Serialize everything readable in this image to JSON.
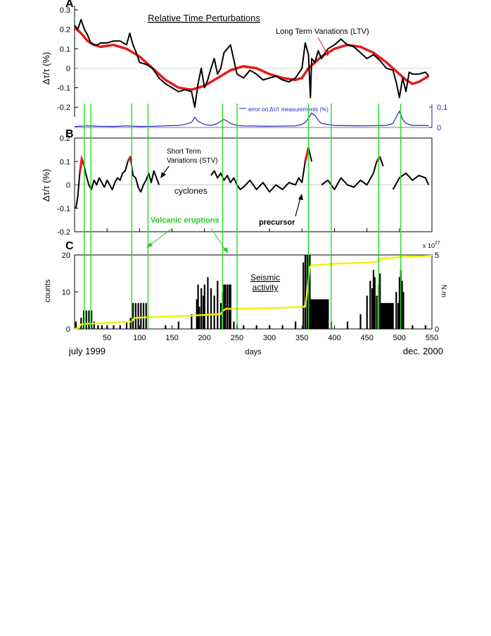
{
  "colors": {
    "data": "#000000",
    "ltv": "#e41a1c",
    "stv_highlight": "#e41a1c",
    "error": "#1f1fd0",
    "eruption": "#22dd22",
    "eruption_text": "#22cc22",
    "cumulative": "#f5f000",
    "axis": "#000000"
  },
  "chart_data": [
    {
      "panel": "A",
      "type": "line",
      "title": "Relative Time Perturbations",
      "ylabel": "Δτ/τ  (%)",
      "xlim": [
        0,
        550
      ],
      "ylim": [
        -0.25,
        0.3
      ],
      "yticks": [
        "0.3",
        "0.2",
        "0.1",
        "0",
        "-0.1",
        "-0.2"
      ],
      "series": [
        {
          "name": "Δτ/τ",
          "x": [
            0,
            5,
            10,
            15,
            20,
            25,
            30,
            35,
            40,
            50,
            60,
            70,
            75,
            80,
            85,
            90,
            95,
            100,
            110,
            120,
            130,
            140,
            150,
            160,
            170,
            180,
            185,
            190,
            195,
            200,
            205,
            210,
            215,
            220,
            225,
            230,
            240,
            250,
            260,
            270,
            280,
            290,
            300,
            310,
            320,
            330,
            340,
            350,
            355,
            360,
            363,
            365,
            370,
            375,
            380,
            390,
            400,
            410,
            420,
            430,
            440,
            450,
            460,
            470,
            480,
            490,
            495,
            500,
            505,
            510,
            515,
            520,
            530,
            540,
            545
          ],
          "values": [
            0.22,
            0.2,
            0.25,
            0.2,
            0.17,
            0.13,
            0.12,
            0.12,
            0.13,
            0.13,
            0.14,
            0.14,
            0.13,
            0.12,
            0.18,
            0.12,
            0.08,
            0.03,
            0.02,
            0.0,
            -0.05,
            -0.08,
            -0.1,
            -0.12,
            -0.11,
            -0.12,
            -0.2,
            -0.08,
            0.0,
            -0.1,
            -0.06,
            0.0,
            0.05,
            -0.03,
            0.0,
            0.08,
            0.12,
            -0.03,
            -0.05,
            -0.01,
            -0.03,
            -0.06,
            -0.05,
            -0.04,
            -0.06,
            -0.07,
            -0.05,
            0.0,
            0.13,
            0.07,
            -0.15,
            0.05,
            0.03,
            0.09,
            0.05,
            0.1,
            0.12,
            0.15,
            0.12,
            0.11,
            0.08,
            0.05,
            0.07,
            0.04,
            0.0,
            -0.01,
            -0.07,
            -0.15,
            -0.05,
            -0.12,
            -0.02,
            -0.03,
            -0.03,
            -0.02,
            -0.04
          ]
        },
        {
          "name": "Long Term Variations (LTV)",
          "x": [
            0,
            10,
            20,
            30,
            40,
            60,
            80,
            100,
            120,
            140,
            160,
            180,
            200,
            220,
            240,
            260,
            280,
            300,
            320,
            340,
            350,
            360,
            380,
            400,
            420,
            440,
            460,
            480,
            500,
            510,
            520,
            530,
            540,
            545
          ],
          "values": [
            0.21,
            0.18,
            0.14,
            0.12,
            0.11,
            0.12,
            0.1,
            0.06,
            0.0,
            -0.06,
            -0.1,
            -0.11,
            -0.09,
            -0.05,
            -0.01,
            0.01,
            0.0,
            -0.03,
            -0.05,
            -0.06,
            -0.05,
            0.0,
            0.06,
            0.1,
            0.12,
            0.11,
            0.08,
            0.03,
            -0.03,
            -0.06,
            -0.08,
            -0.07,
            -0.05,
            -0.04
          ]
        }
      ],
      "annotations": [
        "Long Term Variations (LTV)"
      ]
    },
    {
      "panel": "A-error",
      "type": "line",
      "legend": "error on Δτ/τ measurements (%)",
      "ylim": [
        0,
        0.1
      ],
      "yticks": [
        "0.1",
        "0"
      ],
      "series": [
        {
          "name": "error on Δτ/τ measurements (%)",
          "x": [
            0,
            20,
            40,
            60,
            80,
            100,
            120,
            140,
            160,
            170,
            180,
            185,
            190,
            200,
            210,
            220,
            230,
            240,
            250,
            260,
            300,
            340,
            350,
            355,
            360,
            365,
            370,
            375,
            380,
            400,
            440,
            480,
            490,
            495,
            500,
            505,
            510,
            520,
            540,
            545
          ],
          "values": [
            0.005,
            0.008,
            0.006,
            0.005,
            0.008,
            0.005,
            0.006,
            0.008,
            0.01,
            0.015,
            0.025,
            0.05,
            0.03,
            0.015,
            0.01,
            0.02,
            0.04,
            0.02,
            0.01,
            0.008,
            0.006,
            0.008,
            0.015,
            0.025,
            0.045,
            0.07,
            0.06,
            0.035,
            0.02,
            0.01,
            0.008,
            0.01,
            0.02,
            0.05,
            0.08,
            0.04,
            0.02,
            0.01,
            0.01,
            0.008
          ]
        }
      ]
    },
    {
      "panel": "B",
      "type": "line",
      "ylabel": "Δτ/τ  (%)",
      "xlim": [
        0,
        550
      ],
      "ylim": [
        -0.2,
        0.2
      ],
      "yticks": [
        "0.2",
        "0.1",
        "0",
        "-0.1",
        "-0.2"
      ],
      "series": [
        {
          "name": "Short Term Variations (STV)",
          "segments": [
            {
              "x": [
                2,
                5,
                8,
                11,
                14,
                18,
                22,
                26,
                30,
                34,
                38,
                42,
                46,
                50,
                54,
                58,
                62,
                66,
                70,
                74,
                78,
                82,
                86,
                90,
                94,
                98,
                102,
                106,
                110,
                114,
                118,
                122,
                126,
                130
              ],
              "values": [
                -0.1,
                -0.05,
                0.05,
                0.11,
                0.09,
                0.04,
                0.0,
                -0.02,
                0.02,
                0.0,
                0.03,
                0.01,
                -0.01,
                0.02,
                0.0,
                -0.02,
                0.01,
                0.03,
                0.02,
                0.05,
                0.06,
                0.1,
                0.12,
                0.04,
                0.03,
                -0.01,
                -0.03,
                0.0,
                0.02,
                0.05,
                0.01,
                0.06,
                0.03,
                0.0
              ]
            },
            {
              "x": [
                210,
                215,
                220,
                225,
                230,
                235,
                240,
                245,
                250,
                255,
                260,
                270,
                280,
                290,
                300,
                310,
                320,
                330,
                340,
                345,
                350,
                355,
                360,
                365
              ],
              "values": [
                0.04,
                0.06,
                0.03,
                0.05,
                0.02,
                0.04,
                0.01,
                0.03,
                0.0,
                -0.02,
                -0.01,
                0.02,
                -0.02,
                0.01,
                -0.03,
                0.0,
                -0.02,
                0.01,
                0.0,
                0.03,
                0.01,
                0.1,
                0.16,
                0.1
              ]
            },
            {
              "x": [
                380,
                390,
                400,
                410,
                420,
                430,
                440,
                450,
                460,
                465,
                470,
                475
              ],
              "values": [
                0.0,
                0.02,
                -0.02,
                0.03,
                0.0,
                -0.01,
                0.02,
                0.0,
                0.05,
                0.1,
                0.12,
                0.08
              ]
            },
            {
              "x": [
                490,
                500,
                510,
                520,
                530,
                540,
                545
              ],
              "values": [
                -0.02,
                0.03,
                0.05,
                0.02,
                0.04,
                0.03,
                0.0
              ]
            }
          ]
        }
      ],
      "annotations": [
        "Short Term",
        "Variations (STV)",
        "cyclones",
        "precursor",
        "Volcanic eruptions"
      ]
    },
    {
      "panel": "C",
      "type": "bar",
      "title": "Seismic activity",
      "ylabel": "counts",
      "y2label": "N.m",
      "y2_multiplier": "x 10",
      "y2_multiplier_exp": "27",
      "xlabel": "days",
      "xlim": [
        0,
        550
      ],
      "ylim": [
        0,
        20
      ],
      "y2lim": [
        0,
        5
      ],
      "yticks": [
        "20",
        "10",
        "0"
      ],
      "y2ticks": [
        "5",
        "0"
      ],
      "xticks": [
        "50",
        "100",
        "150",
        "200",
        "250",
        "300",
        "350",
        "400",
        "450",
        "500",
        "550"
      ],
      "xtick_values": [
        50,
        100,
        150,
        200,
        250,
        300,
        350,
        400,
        450,
        500,
        550
      ],
      "bars": {
        "x": [
          2,
          10,
          14,
          18,
          22,
          26,
          30,
          36,
          42,
          50,
          60,
          70,
          80,
          86,
          90,
          94,
          98,
          102,
          106,
          110,
          140,
          160,
          180,
          188,
          190,
          192,
          195,
          198,
          200,
          205,
          210,
          215,
          220,
          225,
          228,
          230,
          232,
          235,
          238,
          240,
          245,
          250,
          260,
          280,
          300,
          320,
          340,
          352,
          355,
          358,
          360,
          362,
          364,
          366,
          368,
          370,
          372,
          374,
          376,
          378,
          380,
          382,
          384,
          386,
          388,
          390,
          395,
          420,
          440,
          450,
          455,
          458,
          460,
          462,
          465,
          468,
          470,
          472,
          474,
          476,
          478,
          480,
          482,
          484,
          486,
          488,
          490,
          495,
          498,
          500,
          502,
          504,
          506,
          520,
          540
        ],
        "values": [
          2,
          3,
          5,
          5,
          5,
          5,
          2,
          1,
          1,
          1,
          1,
          1,
          2,
          3,
          7,
          7,
          7,
          7,
          7,
          7,
          1,
          2,
          4,
          8,
          12,
          6,
          11,
          9,
          12,
          14,
          11,
          9,
          13,
          7,
          10,
          12,
          12,
          12,
          12,
          12,
          2,
          1,
          1,
          1,
          1,
          1,
          2,
          18,
          20,
          20,
          20,
          20,
          8,
          8,
          8,
          8,
          8,
          8,
          8,
          8,
          8,
          8,
          8,
          8,
          8,
          8,
          2,
          2,
          4,
          9,
          13,
          11,
          16,
          14,
          9,
          12,
          15,
          7,
          7,
          7,
          7,
          7,
          7,
          7,
          7,
          7,
          7,
          10,
          7,
          14,
          16,
          13,
          10,
          1,
          1
        ]
      },
      "cumulative": {
        "name": "cumulative seismic moment (N.m)",
        "x": [
          0,
          5,
          10,
          20,
          50,
          88,
          92,
          120,
          180,
          225,
          228,
          232,
          300,
          355,
          358,
          362,
          365,
          400,
          460,
          468,
          472,
          500,
          550
        ],
        "values": [
          0.0,
          0.05,
          0.3,
          0.35,
          0.4,
          0.5,
          0.75,
          0.8,
          0.9,
          1.0,
          1.2,
          1.35,
          1.4,
          1.5,
          2.5,
          4.2,
          4.3,
          4.4,
          4.5,
          4.6,
          4.75,
          4.85,
          4.95
        ]
      },
      "annotations": [
        "Seismic",
        "activity",
        "july 1999",
        "dec. 2000"
      ]
    }
  ],
  "eruptions_days": [
    15,
    25,
    88,
    113,
    228,
    250,
    360,
    395,
    468,
    502
  ]
}
